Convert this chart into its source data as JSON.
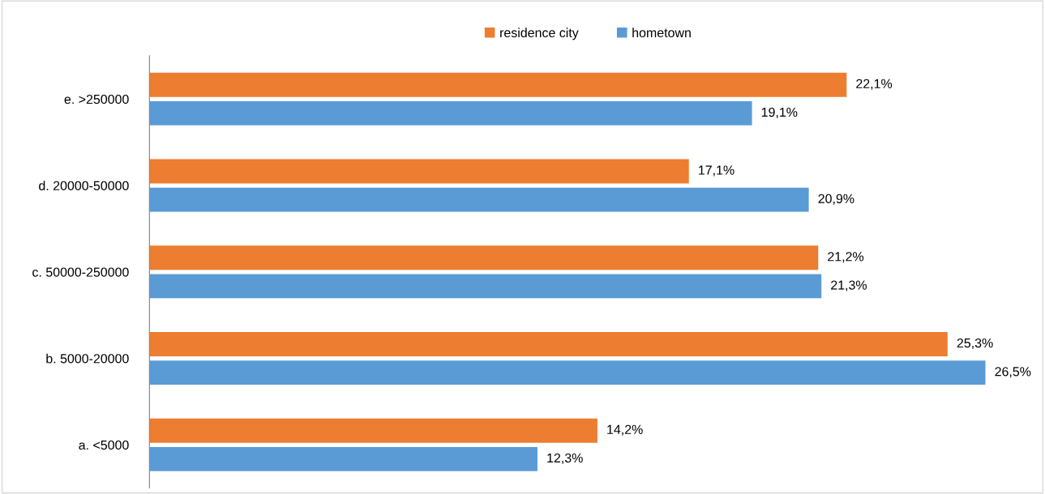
{
  "chart_data": {
    "type": "bar",
    "orientation": "horizontal",
    "categories": [
      "e. >250000",
      "d. 20000-50000",
      "c. 50000-250000",
      "b. 5000-20000",
      "a. <5000"
    ],
    "series": [
      {
        "name": "residence city",
        "color": "#ed7d31",
        "values": [
          22.1,
          17.1,
          21.2,
          25.3,
          14.2
        ],
        "value_labels": [
          "22,1%",
          "17,1%",
          "21,2%",
          "25,3%",
          "14,2%"
        ]
      },
      {
        "name": "hometown",
        "color": "#5b9bd5",
        "values": [
          19.1,
          20.9,
          21.3,
          26.5,
          12.3
        ],
        "value_labels": [
          "19,1%",
          "20,9%",
          "21,3%",
          "26,5%",
          "12,3%"
        ]
      }
    ],
    "legend": "top",
    "grid": false,
    "tick_labels": "y"
  }
}
